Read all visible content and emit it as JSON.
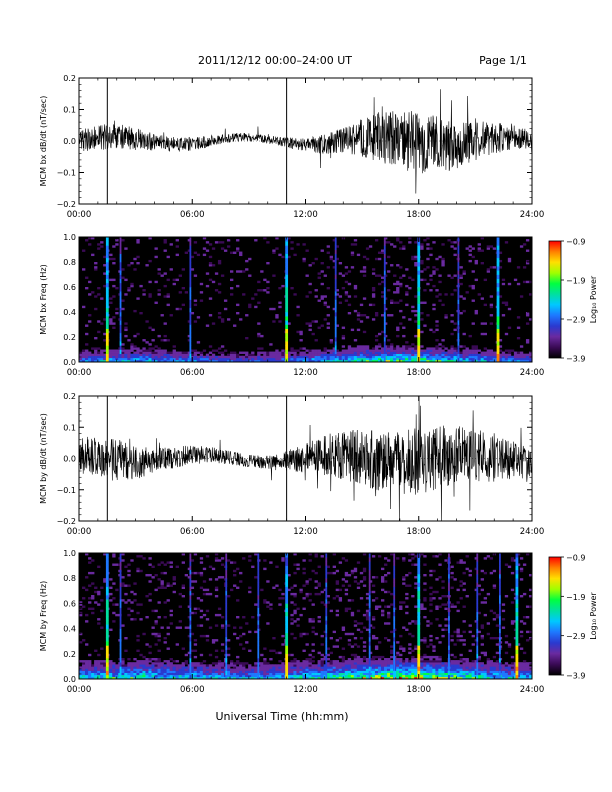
{
  "header": {
    "title": "2011/12/12  00:00–24:00 UT",
    "page": "Page 1/1"
  },
  "footer": {
    "xlabel": "Universal Time (hh:mm)"
  },
  "colors": {
    "trace": "#000000",
    "spectrogram_background": "#000000",
    "colormap": [
      "#000000",
      "#3a0a55",
      "#6a2aa0",
      "#2a3ad0",
      "#1e78ff",
      "#00c8ff",
      "#00e0a0",
      "#00ff40",
      "#a0ff00",
      "#ffe000",
      "#ff8000",
      "#ff0000"
    ]
  },
  "chart_data": [
    {
      "type": "line",
      "ylabel": "MCM bx dB/dt (nT/sec)",
      "ylim": [
        -0.2,
        0.2
      ],
      "yticks": [
        "0.2",
        "0.1",
        "0.0",
        "−0.1",
        "−0.2"
      ],
      "xlim": [
        0,
        24
      ],
      "xticks": [
        "00:00",
        "06:00",
        "12:00",
        "18:00",
        "24:00"
      ],
      "spike_hours": [
        1.5,
        11.0
      ],
      "amplitude_envelope": {
        "x": [
          0,
          2,
          4,
          6,
          8,
          10,
          12,
          14,
          16,
          18,
          20,
          22,
          24
        ],
        "y": [
          0.035,
          0.045,
          0.028,
          0.022,
          0.014,
          0.013,
          0.022,
          0.04,
          0.085,
          0.1,
          0.08,
          0.05,
          0.03
        ]
      }
    },
    {
      "type": "heatmap",
      "ylabel": "MCM bx Freq (Hz)",
      "ylim": [
        0.0,
        1.0
      ],
      "yticks": [
        "1.0",
        "0.8",
        "0.6",
        "0.4",
        "0.2",
        "0.0"
      ],
      "xlim": [
        0,
        24
      ],
      "xticks": [
        "00:00",
        "06:00",
        "12:00",
        "18:00",
        "24:00"
      ],
      "colorbar": {
        "label": "Log₁₀ Power",
        "range": [
          -3.9,
          -0.9
        ],
        "ticks": [
          "−0.9",
          "−1.9",
          "−2.9",
          "−3.9"
        ]
      },
      "vertical_lines_hours": [
        1.5,
        2.2,
        5.9,
        11.0,
        13.6,
        16.2,
        18.0,
        20.1,
        22.2
      ],
      "strong_lines_hours": [
        1.5,
        11.0,
        18.0,
        22.2
      ]
    },
    {
      "type": "line",
      "ylabel": "MCM by dB/dt (nT/sec)",
      "ylim": [
        -0.2,
        0.2
      ],
      "yticks": [
        "0.2",
        "0.1",
        "0.0",
        "−0.1",
        "−0.2"
      ],
      "xlim": [
        0,
        24
      ],
      "xticks": [
        "00:00",
        "06:00",
        "12:00",
        "18:00",
        "24:00"
      ],
      "spike_hours": [
        1.5,
        11.0
      ],
      "amplitude_envelope": {
        "x": [
          0,
          2,
          4,
          6,
          8,
          10,
          12,
          14,
          16,
          18,
          20,
          22,
          24
        ],
        "y": [
          0.06,
          0.07,
          0.04,
          0.03,
          0.022,
          0.02,
          0.05,
          0.08,
          0.1,
          0.11,
          0.095,
          0.08,
          0.045
        ]
      }
    },
    {
      "type": "heatmap",
      "ylabel": "MCM by Freq (Hz)",
      "ylim": [
        0.0,
        1.0
      ],
      "yticks": [
        "1.0",
        "0.8",
        "0.6",
        "0.4",
        "0.2",
        "0.0"
      ],
      "xlim": [
        0,
        24
      ],
      "xticks": [
        "00:00",
        "06:00",
        "12:00",
        "18:00",
        "24:00"
      ],
      "colorbar": {
        "label": "Log₁₀ Power",
        "range": [
          -3.9,
          -0.9
        ],
        "ticks": [
          "−0.9",
          "−1.9",
          "−2.9",
          "−3.9"
        ]
      },
      "vertical_lines_hours": [
        1.5,
        2.2,
        5.9,
        7.8,
        9.5,
        11.0,
        13.1,
        15.4,
        16.7,
        18.0,
        19.6,
        21.1,
        22.3,
        23.2
      ],
      "strong_lines_hours": [
        1.5,
        11.0,
        18.0,
        23.2
      ]
    }
  ]
}
